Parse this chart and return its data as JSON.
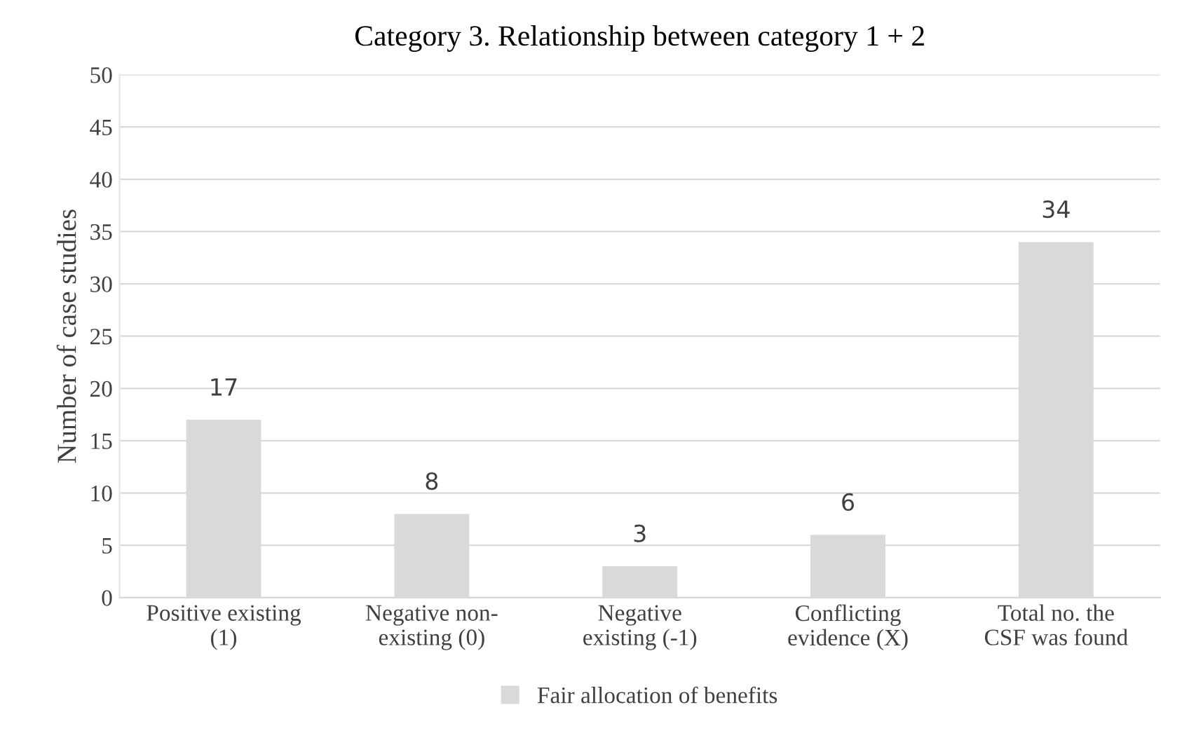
{
  "chart_data": {
    "type": "bar",
    "title": "Category 3. Relationship between category 1 + 2",
    "ylabel": "Number of case studies",
    "categories": [
      "Positive existing\n(1)",
      "Negative non-\nexisting (0)",
      "Negative\nexisting (-1)",
      "Conflicting\nevidence (X)",
      "Total no. the\nCSF was found"
    ],
    "series": [
      {
        "name": "Fair allocation of benefits",
        "color": "#d9d9d9",
        "values": [
          17,
          8,
          3,
          6,
          34
        ]
      }
    ],
    "ylim": [
      0,
      50
    ],
    "yticks": [
      0,
      5,
      10,
      15,
      20,
      25,
      30,
      35,
      40,
      45,
      50
    ],
    "grid": "y",
    "legend": "bottom",
    "data_labels": true
  }
}
